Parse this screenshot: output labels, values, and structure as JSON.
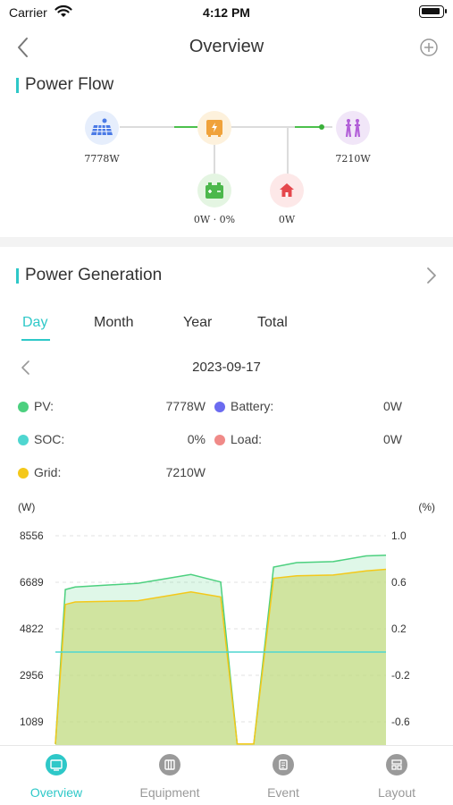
{
  "status_bar": {
    "carrier": "Carrier",
    "time": "4:12 PM"
  },
  "header": {
    "title": "Overview"
  },
  "power_flow": {
    "title": "Power Flow",
    "pv_value": "7778W",
    "grid_value": "7210W",
    "battery_value": "0W · 0%",
    "load_value": "0W"
  },
  "power_generation": {
    "title": "Power Generation",
    "tabs": [
      "Day",
      "Month",
      "Year",
      "Total"
    ],
    "active_tab": "Day",
    "date": "2023-09-17",
    "stats": [
      {
        "label": "PV:",
        "value": "7778W",
        "color": "#4cd07f"
      },
      {
        "label": "Battery:",
        "value": "0W",
        "color": "#6b6bf0"
      },
      {
        "label": "SOC:",
        "value": "0%",
        "color": "#4fd6d0"
      },
      {
        "label": "Load:",
        "value": "0W",
        "color": "#f08a88"
      },
      {
        "label": "Grid:",
        "value": "7210W",
        "color": "#f4c81a"
      }
    ]
  },
  "chart_data": {
    "type": "area",
    "ylabel_left": "(W)",
    "ylabel_right": "(%)",
    "y_ticks_left": [
      "8556",
      "6689",
      "4822",
      "2956",
      "1089"
    ],
    "y_ticks_right": [
      "1.0",
      "0.6",
      "0.2",
      "-0.2",
      "-0.6"
    ],
    "series": [
      {
        "name": "PV:",
        "color": "#4cd07f",
        "x": [
          0,
          3,
          6,
          25,
          41,
          50,
          55,
          60,
          66,
          73,
          84,
          94,
          100
        ],
        "values": [
          200,
          6400,
          6500,
          6650,
          7000,
          6700,
          200,
          200,
          7300,
          7480,
          7520,
          7750,
          7778
        ]
      },
      {
        "name": "Grid:",
        "color": "#f4c81a",
        "x": [
          0,
          3,
          6,
          25,
          41,
          50,
          55,
          60,
          66,
          73,
          84,
          94,
          100
        ],
        "values": [
          200,
          5800,
          5900,
          5950,
          6300,
          6100,
          200,
          200,
          6850,
          6950,
          6980,
          7150,
          7210
        ]
      },
      {
        "name": "SOC:",
        "color": "#4fd6d0",
        "x": [
          0,
          100
        ],
        "values": [
          0,
          0
        ]
      }
    ]
  },
  "tab_bar": {
    "items": [
      "Overview",
      "Equipment",
      "Event",
      "Layout"
    ],
    "active": "Overview"
  }
}
